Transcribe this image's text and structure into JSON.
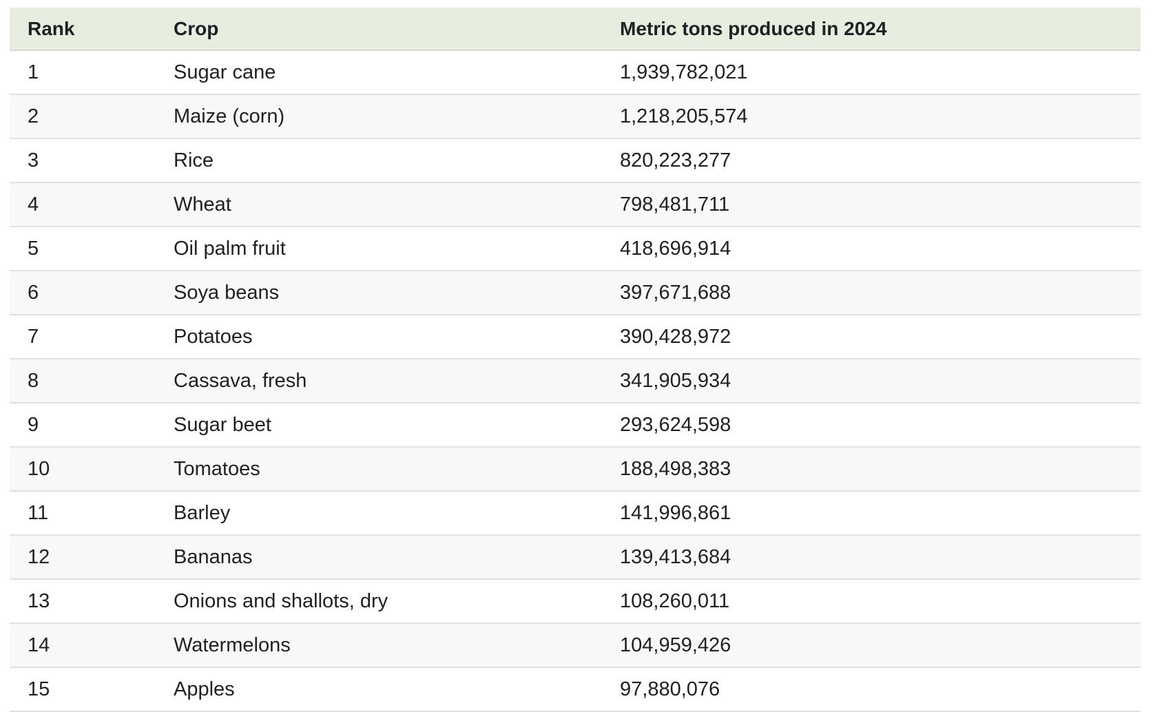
{
  "table": {
    "columns": {
      "rank": "Rank",
      "crop": "Crop",
      "metric_tons": "Metric tons produced in 2024"
    },
    "rows": [
      {
        "rank": "1",
        "crop": "Sugar cane",
        "value": "1,939,782,021"
      },
      {
        "rank": "2",
        "crop": "Maize (corn)",
        "value": "1,218,205,574"
      },
      {
        "rank": "3",
        "crop": "Rice",
        "value": "820,223,277"
      },
      {
        "rank": "4",
        "crop": "Wheat",
        "value": "798,481,711"
      },
      {
        "rank": "5",
        "crop": "Oil palm fruit",
        "value": "418,696,914"
      },
      {
        "rank": "6",
        "crop": "Soya beans",
        "value": "397,671,688"
      },
      {
        "rank": "7",
        "crop": "Potatoes",
        "value": "390,428,972"
      },
      {
        "rank": "8",
        "crop": "Cassava, fresh",
        "value": "341,905,934"
      },
      {
        "rank": "9",
        "crop": "Sugar beet",
        "value": "293,624,598"
      },
      {
        "rank": "10",
        "crop": "Tomatoes",
        "value": "188,498,383"
      },
      {
        "rank": "11",
        "crop": "Barley",
        "value": "141,996,861"
      },
      {
        "rank": "12",
        "crop": "Bananas",
        "value": "139,413,684"
      },
      {
        "rank": "13",
        "crop": "Onions and shallots, dry",
        "value": "108,260,011"
      },
      {
        "rank": "14",
        "crop": "Watermelons",
        "value": "104,959,426"
      },
      {
        "rank": "15",
        "crop": "Apples",
        "value": "97,880,076"
      }
    ]
  },
  "colors": {
    "header_bg": "#e6eedf",
    "stripe_bg": "#f8f8f8",
    "row_border": "#e0e0e0",
    "header_border": "#d6d8d4",
    "text": "#202124",
    "page_bg": "#ffffff"
  },
  "chart_data": {
    "type": "table",
    "title": "",
    "columns": [
      "Rank",
      "Crop",
      "Metric tons produced in 2024"
    ],
    "rows": [
      [
        1,
        "Sugar cane",
        1939782021
      ],
      [
        2,
        "Maize (corn)",
        1218205574
      ],
      [
        3,
        "Rice",
        820223277
      ],
      [
        4,
        "Wheat",
        798481711
      ],
      [
        5,
        "Oil palm fruit",
        418696914
      ],
      [
        6,
        "Soya beans",
        397671688
      ],
      [
        7,
        "Potatoes",
        390428972
      ],
      [
        8,
        "Cassava, fresh",
        341905934
      ],
      [
        9,
        "Sugar beet",
        293624598
      ],
      [
        10,
        "Tomatoes",
        188498383
      ],
      [
        11,
        "Barley",
        141996861
      ],
      [
        12,
        "Bananas",
        139413684
      ],
      [
        13,
        "Onions and shallots, dry",
        108260011
      ],
      [
        14,
        "Watermelons",
        104959426
      ],
      [
        15,
        "Apples",
        97880076
      ]
    ],
    "layout_hints": {
      "striped_rows": "even ranks shaded",
      "header_style": "bold on light green band",
      "alignment": "all columns left-aligned"
    }
  }
}
